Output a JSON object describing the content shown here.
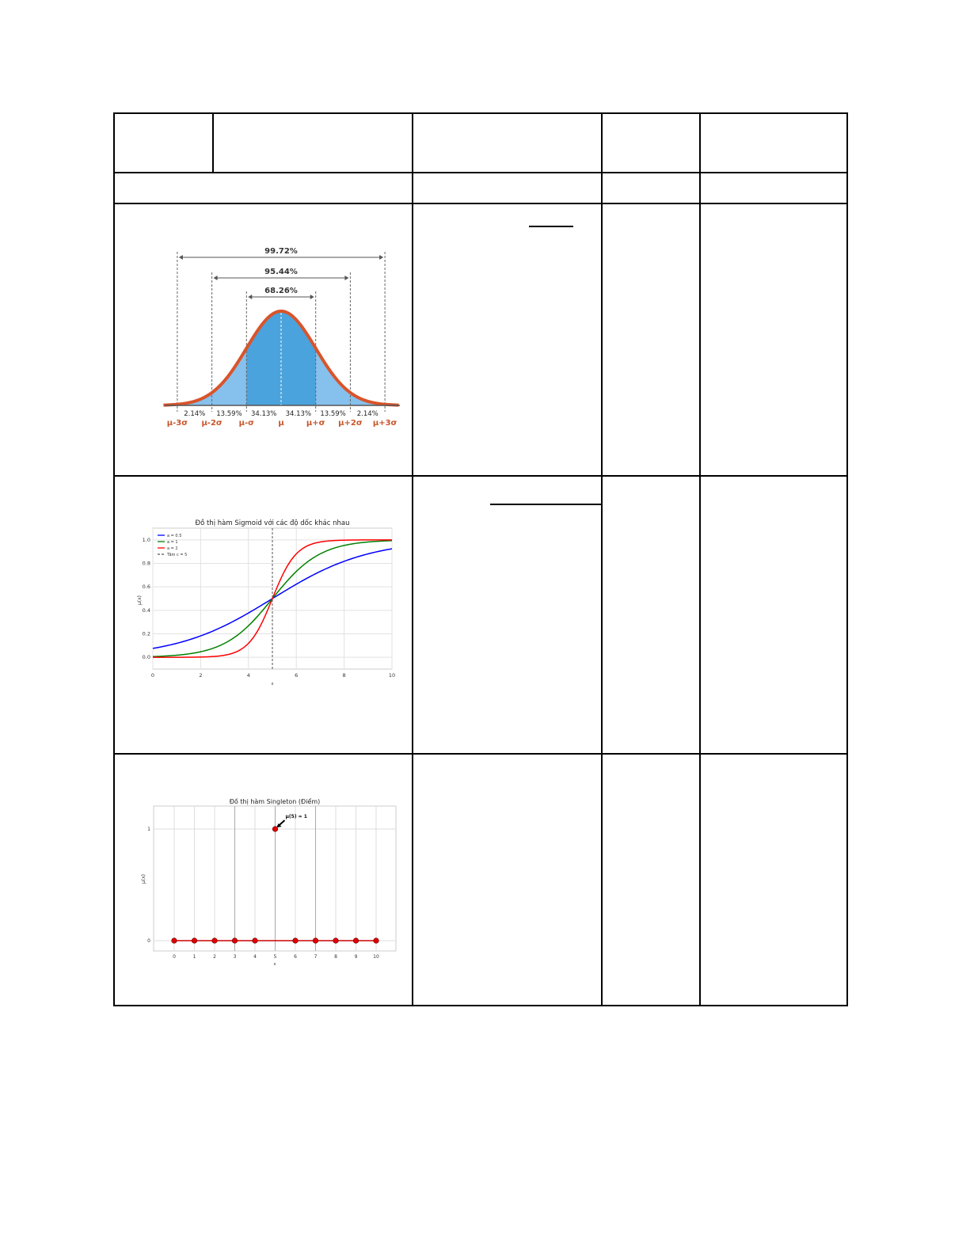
{
  "table": {
    "header_cells": [
      "",
      "",
      "",
      "",
      ""
    ],
    "subheader_cells": [
      "",
      "",
      "",
      ""
    ],
    "rows": [
      {
        "cells": [
          "",
          "",
          ""
        ]
      },
      {
        "cells": [
          "",
          "",
          ""
        ]
      },
      {
        "cells": [
          "",
          "",
          ""
        ]
      }
    ]
  },
  "chart_data": [
    {
      "type": "area",
      "title": "",
      "ranges": [
        {
          "label": "99.72%",
          "from": "μ-3σ",
          "to": "μ+3σ"
        },
        {
          "label": "95.44%",
          "from": "μ-2σ",
          "to": "μ+2σ"
        },
        {
          "label": "68.26%",
          "from": "μ-σ",
          "to": "μ+σ"
        }
      ],
      "segment_percents": [
        "2.14%",
        "13.59%",
        "34.13%",
        "34.13%",
        "13.59%",
        "2.14%"
      ],
      "tick_labels": [
        "μ-3σ",
        "μ-2σ",
        "μ-σ",
        "μ",
        "μ+σ",
        "μ+2σ",
        "μ+3σ"
      ],
      "colors": {
        "curve": "#d9542b",
        "inner": "#4aa3dc",
        "outer": "#86c0ec",
        "labels": "#c8562a"
      }
    },
    {
      "type": "line",
      "title": "Đồ thị hàm Sigmoid với các độ dốc khác nhau",
      "xlabel": "x",
      "ylabel": "μ(x)",
      "xlim": [
        0,
        10
      ],
      "ylim": [
        -0.1,
        1.1
      ],
      "xticks": [
        "0",
        "2",
        "4",
        "6",
        "8",
        "10"
      ],
      "yticks": [
        "0.0",
        "0.2",
        "0.4",
        "0.6",
        "0.8",
        "1.0"
      ],
      "grid": true,
      "legend": "top-left",
      "center": 5,
      "series": [
        {
          "name": "a = 0.5",
          "a": 0.5,
          "color": "#0000ff"
        },
        {
          "name": "a = 1",
          "a": 1,
          "color": "#008000"
        },
        {
          "name": "a = 2",
          "a": 2,
          "color": "#ff0000"
        }
      ],
      "vline": {
        "name": "Tâm c = 5",
        "x": 5,
        "color": "#555555"
      }
    },
    {
      "type": "scatter",
      "title": "Đồ thị hàm Singleton (Điểm)",
      "xlabel": "x",
      "ylabel": "μ(x)",
      "xticks": [
        "0",
        "1",
        "2",
        "3",
        "4",
        "5",
        "6",
        "7",
        "8",
        "9",
        "10"
      ],
      "yticks": [
        "0",
        "1"
      ],
      "grid": true,
      "x": [
        0,
        1,
        2,
        3,
        4,
        5,
        6,
        7,
        8,
        9,
        10
      ],
      "y": [
        0,
        0,
        0,
        0,
        0,
        1,
        0,
        0,
        0,
        0,
        0
      ],
      "annotation": "μ(5) = 1",
      "color": "#e00000"
    }
  ]
}
